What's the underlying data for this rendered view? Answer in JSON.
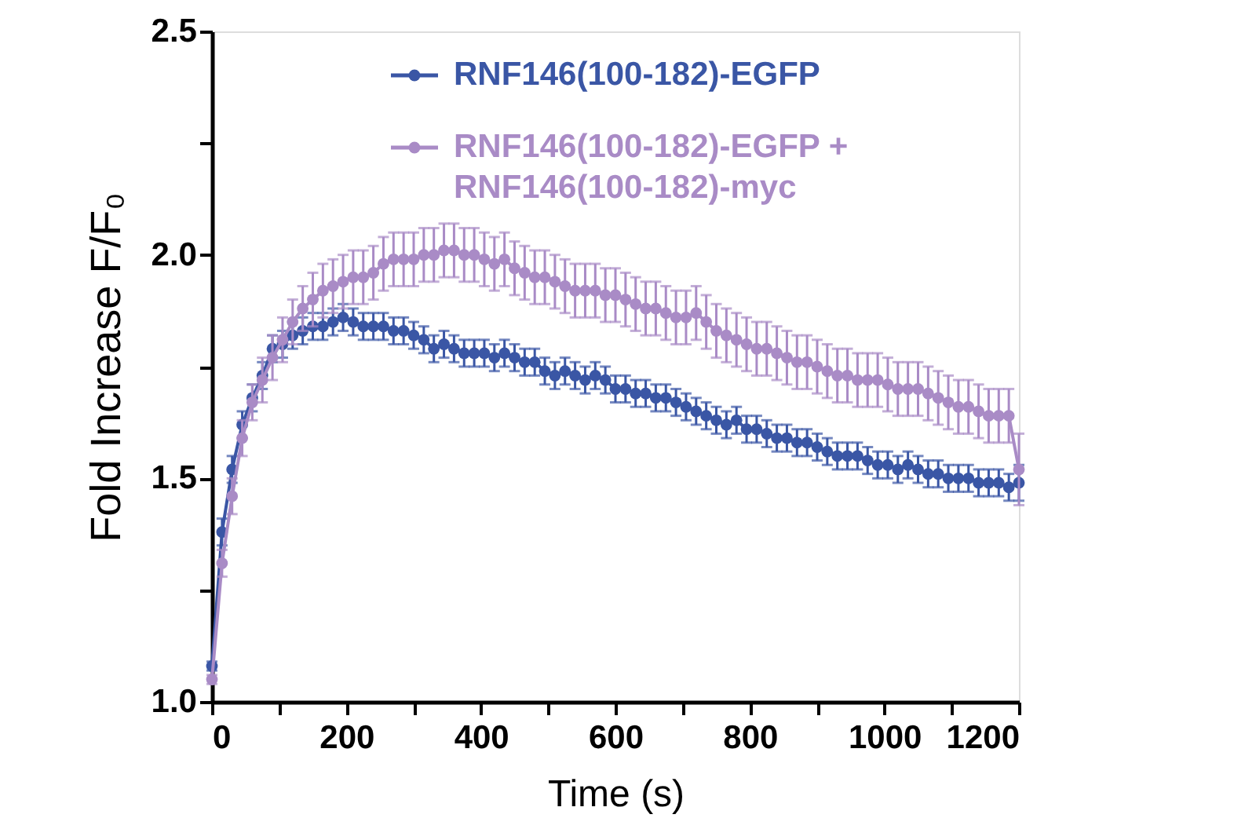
{
  "chart_data": {
    "type": "line",
    "xlabel": "Time (s)",
    "ylabel": "Fold Increase F/F₀",
    "x": [
      0,
      15,
      30,
      45,
      60,
      75,
      90,
      105,
      120,
      135,
      150,
      165,
      180,
      195,
      210,
      225,
      240,
      255,
      270,
      285,
      300,
      315,
      330,
      345,
      360,
      375,
      390,
      405,
      420,
      435,
      450,
      465,
      480,
      495,
      510,
      525,
      540,
      555,
      570,
      585,
      600,
      615,
      630,
      645,
      660,
      675,
      690,
      705,
      720,
      735,
      750,
      765,
      780,
      795,
      810,
      825,
      840,
      855,
      870,
      885,
      900,
      915,
      930,
      945,
      960,
      975,
      990,
      1005,
      1020,
      1035,
      1050,
      1065,
      1080,
      1095,
      1110,
      1125,
      1140,
      1155,
      1170,
      1185,
      1200
    ],
    "series": [
      {
        "name": "RNF146(100-182)-EGFP",
        "color": "#3a56a5",
        "values": [
          1.08,
          1.38,
          1.52,
          1.62,
          1.68,
          1.73,
          1.79,
          1.8,
          1.82,
          1.83,
          1.84,
          1.84,
          1.85,
          1.86,
          1.85,
          1.84,
          1.84,
          1.84,
          1.83,
          1.83,
          1.82,
          1.81,
          1.79,
          1.8,
          1.79,
          1.78,
          1.78,
          1.78,
          1.77,
          1.78,
          1.77,
          1.76,
          1.76,
          1.74,
          1.73,
          1.74,
          1.73,
          1.72,
          1.73,
          1.72,
          1.7,
          1.7,
          1.69,
          1.69,
          1.68,
          1.68,
          1.67,
          1.66,
          1.65,
          1.64,
          1.63,
          1.62,
          1.63,
          1.61,
          1.61,
          1.6,
          1.59,
          1.59,
          1.58,
          1.58,
          1.57,
          1.56,
          1.55,
          1.55,
          1.55,
          1.54,
          1.53,
          1.53,
          1.52,
          1.53,
          1.52,
          1.51,
          1.51,
          1.5,
          1.5,
          1.5,
          1.49,
          1.49,
          1.49,
          1.48,
          1.49
        ],
        "errors": [
          0.01,
          0.03,
          0.03,
          0.03,
          0.03,
          0.03,
          0.03,
          0.03,
          0.03,
          0.03,
          0.03,
          0.03,
          0.03,
          0.03,
          0.03,
          0.03,
          0.03,
          0.03,
          0.03,
          0.03,
          0.03,
          0.03,
          0.03,
          0.03,
          0.03,
          0.03,
          0.03,
          0.03,
          0.03,
          0.03,
          0.03,
          0.03,
          0.03,
          0.03,
          0.03,
          0.03,
          0.03,
          0.03,
          0.03,
          0.03,
          0.03,
          0.03,
          0.03,
          0.03,
          0.03,
          0.03,
          0.03,
          0.03,
          0.03,
          0.03,
          0.03,
          0.03,
          0.03,
          0.03,
          0.03,
          0.03,
          0.03,
          0.03,
          0.03,
          0.03,
          0.03,
          0.03,
          0.03,
          0.03,
          0.03,
          0.03,
          0.03,
          0.03,
          0.03,
          0.03,
          0.03,
          0.03,
          0.03,
          0.03,
          0.03,
          0.03,
          0.03,
          0.03,
          0.03,
          0.03,
          0.04
        ]
      },
      {
        "name": "RNF146(100-182)-EGFP + RNF146(100-182)-myc",
        "color": "#a98bc6",
        "values": [
          1.05,
          1.31,
          1.46,
          1.59,
          1.67,
          1.72,
          1.77,
          1.81,
          1.85,
          1.88,
          1.9,
          1.92,
          1.93,
          1.94,
          1.95,
          1.95,
          1.96,
          1.98,
          1.99,
          1.99,
          1.99,
          2.0,
          2.0,
          2.01,
          2.01,
          2.0,
          2.0,
          1.99,
          1.98,
          1.99,
          1.97,
          1.96,
          1.95,
          1.95,
          1.94,
          1.93,
          1.92,
          1.92,
          1.92,
          1.91,
          1.91,
          1.9,
          1.89,
          1.88,
          1.88,
          1.87,
          1.86,
          1.86,
          1.87,
          1.85,
          1.83,
          1.82,
          1.81,
          1.8,
          1.79,
          1.79,
          1.78,
          1.77,
          1.76,
          1.76,
          1.75,
          1.74,
          1.73,
          1.73,
          1.72,
          1.72,
          1.72,
          1.71,
          1.7,
          1.7,
          1.7,
          1.69,
          1.68,
          1.67,
          1.66,
          1.66,
          1.65,
          1.64,
          1.64,
          1.64,
          1.52
        ],
        "errors": [
          0.01,
          0.03,
          0.04,
          0.04,
          0.04,
          0.05,
          0.05,
          0.05,
          0.05,
          0.05,
          0.06,
          0.06,
          0.06,
          0.06,
          0.06,
          0.06,
          0.06,
          0.06,
          0.06,
          0.06,
          0.06,
          0.06,
          0.06,
          0.06,
          0.06,
          0.06,
          0.06,
          0.06,
          0.06,
          0.06,
          0.06,
          0.06,
          0.06,
          0.06,
          0.06,
          0.06,
          0.06,
          0.06,
          0.06,
          0.06,
          0.06,
          0.06,
          0.06,
          0.06,
          0.06,
          0.06,
          0.06,
          0.06,
          0.06,
          0.06,
          0.06,
          0.06,
          0.06,
          0.06,
          0.06,
          0.06,
          0.06,
          0.06,
          0.06,
          0.06,
          0.06,
          0.06,
          0.06,
          0.06,
          0.06,
          0.06,
          0.06,
          0.06,
          0.06,
          0.06,
          0.06,
          0.06,
          0.06,
          0.06,
          0.06,
          0.06,
          0.06,
          0.06,
          0.06,
          0.06,
          0.08
        ]
      }
    ],
    "xlim": [
      0,
      1200
    ],
    "xticks": [
      0,
      {
        "value": 100,
        "label": null
      },
      200,
      {
        "value": 300,
        "label": null
      },
      400,
      {
        "value": 500,
        "label": null
      },
      600,
      {
        "value": 700,
        "label": null
      },
      800,
      {
        "value": 900,
        "label": null
      },
      1000,
      {
        "value": 1100,
        "label": null
      },
      1200
    ],
    "ylim": [
      1,
      2.5
    ],
    "yticks": [
      {
        "value": 1,
        "label": "1.0"
      },
      {
        "value": 1.25,
        "label": null
      },
      {
        "value": 1.5,
        "label": "1.5"
      },
      {
        "value": 1.75,
        "label": null
      },
      {
        "value": 2,
        "label": "2.0"
      },
      {
        "value": 2.25,
        "label": null
      },
      {
        "value": 2.5,
        "label": "2.5"
      }
    ],
    "grid": false,
    "legend": "top right",
    "marker": "circle",
    "line_style": "solid"
  }
}
